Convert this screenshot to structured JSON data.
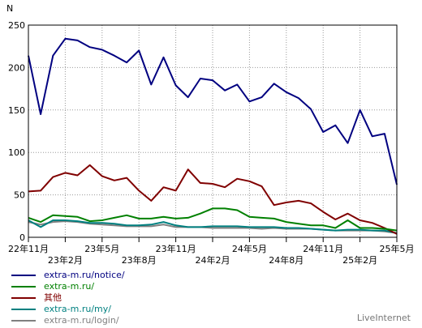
{
  "chart_data": {
    "type": "line",
    "ylabel": "N",
    "ylim": [
      0,
      250
    ],
    "yticks": [
      0,
      50,
      100,
      150,
      200,
      250
    ],
    "grid": true,
    "x_ticks_top": [
      "22年11月",
      "23年5月",
      "23年11月",
      "24年5月",
      "24年11月",
      "25年5月"
    ],
    "x_ticks_bottom": [
      "23年2月",
      "23年8月",
      "24年2月",
      "24年8月",
      "25年2月"
    ],
    "series": [
      {
        "name": "extra-m.ru/notice/",
        "color": "#000080",
        "values": [
          214,
          145,
          214,
          234,
          232,
          224,
          221,
          214,
          206,
          220,
          180,
          212,
          179,
          165,
          187,
          185,
          173,
          180,
          160,
          165,
          181,
          171,
          164,
          151,
          124,
          132,
          111,
          150,
          119,
          122,
          62
        ]
      },
      {
        "name": "extra-m.ru/",
        "color": "#008000",
        "values": [
          23,
          18,
          26,
          25,
          24,
          19,
          20,
          23,
          26,
          22,
          22,
          24,
          22,
          23,
          28,
          34,
          34,
          32,
          24,
          23,
          22,
          18,
          16,
          14,
          14,
          11,
          20,
          11,
          11,
          10,
          8
        ]
      },
      {
        "name": "其他",
        "color": "#800000",
        "values": [
          54,
          55,
          71,
          76,
          73,
          85,
          72,
          67,
          70,
          55,
          43,
          59,
          55,
          80,
          64,
          63,
          59,
          69,
          66,
          60,
          38,
          41,
          43,
          40,
          30,
          21,
          28,
          20,
          17,
          11,
          4
        ]
      },
      {
        "name": "extra-m.ru/my/",
        "color": "#008080",
        "values": [
          20,
          12,
          20,
          20,
          19,
          17,
          17,
          16,
          14,
          14,
          15,
          18,
          14,
          12,
          12,
          13,
          13,
          13,
          12,
          12,
          12,
          11,
          11,
          10,
          9,
          8,
          9,
          9,
          8,
          8,
          5
        ]
      },
      {
        "name": "extra-m.ru/login/",
        "color": "#808080",
        "values": [
          18,
          15,
          18,
          19,
          18,
          16,
          15,
          14,
          13,
          13,
          13,
          15,
          12,
          12,
          12,
          11,
          11,
          11,
          11,
          10,
          11,
          10,
          10,
          10,
          9,
          8,
          8,
          8,
          8,
          7,
          5
        ]
      }
    ]
  },
  "watermark": "LiveInternet"
}
